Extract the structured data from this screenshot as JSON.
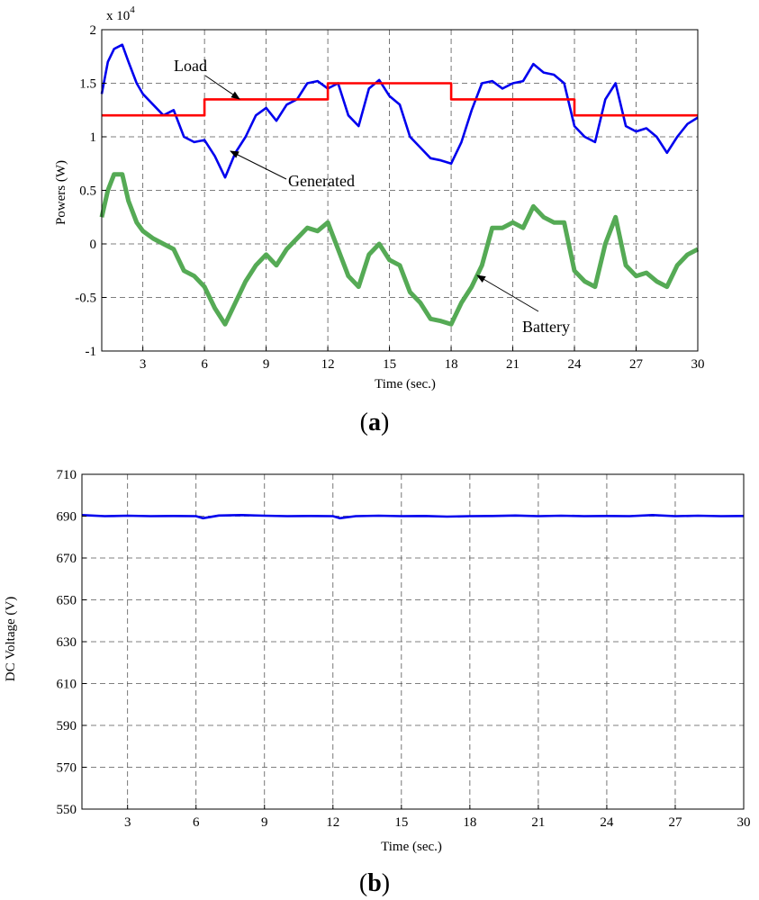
{
  "charts": [
    {
      "id": "a",
      "panel_label": "a",
      "xlabel": "Time (sec.)",
      "ylabel": "Powers (W)",
      "exponent_label": "x 10",
      "exponent_power": "4",
      "annotations": [
        "Load",
        "Generated",
        "Battery"
      ]
    },
    {
      "id": "b",
      "panel_label": "b",
      "xlabel": "Time (sec.)",
      "ylabel": "DC Voltage (V)"
    }
  ],
  "colors": {
    "load": "#ff0000",
    "generated": "#0000ee",
    "battery": "#55aa55",
    "voltage": "#0000ee",
    "grid": "#555555"
  },
  "chart_data": [
    {
      "type": "line",
      "title": "",
      "xlabel": "Time (sec.)",
      "ylabel": "Powers (W)",
      "y_scale_note": "x 10^4",
      "xlim": [
        1,
        30
      ],
      "ylim": [
        -1,
        2
      ],
      "x_ticks": [
        3,
        6,
        9,
        12,
        15,
        18,
        21,
        24,
        27,
        30
      ],
      "y_ticks": [
        -1,
        -0.5,
        0,
        0.5,
        1,
        1.5,
        2
      ],
      "x_tick_labels": [
        "3",
        "6",
        "9",
        "12",
        "15",
        "18",
        "21",
        "24",
        "27",
        "30"
      ],
      "y_tick_labels": [
        "-1",
        "-0.5",
        "0",
        "0.5",
        "1",
        "1.5",
        "2"
      ],
      "grid": true,
      "series": [
        {
          "key": "load",
          "name": "Load",
          "step": true,
          "x": [
            1,
            6,
            6,
            12,
            12,
            18,
            18,
            24,
            24,
            30
          ],
          "y": [
            1.2,
            1.2,
            1.35,
            1.35,
            1.5,
            1.5,
            1.35,
            1.35,
            1.2,
            1.2
          ]
        },
        {
          "key": "generated",
          "name": "Generated",
          "x": [
            1,
            1.3,
            1.6,
            2.0,
            2.3,
            2.7,
            3.0,
            3.5,
            4.0,
            4.5,
            5.0,
            5.5,
            6.0,
            6.5,
            7.0,
            7.5,
            8.0,
            8.5,
            9.0,
            9.5,
            10.0,
            10.5,
            11.0,
            11.5,
            12.0,
            12.5,
            13.0,
            13.5,
            14.0,
            14.5,
            15.0,
            15.5,
            16.0,
            16.5,
            17.0,
            17.5,
            18.0,
            18.5,
            19.0,
            19.5,
            20.0,
            20.5,
            21.0,
            21.5,
            22.0,
            22.5,
            23.0,
            23.5,
            24.0,
            24.5,
            25.0,
            25.5,
            26.0,
            26.5,
            27.0,
            27.5,
            28.0,
            28.5,
            29.0,
            29.5,
            30.0
          ],
          "y": [
            1.4,
            1.7,
            1.82,
            1.86,
            1.7,
            1.5,
            1.4,
            1.3,
            1.2,
            1.25,
            1.0,
            0.95,
            0.97,
            0.82,
            0.62,
            0.85,
            1.0,
            1.2,
            1.27,
            1.15,
            1.3,
            1.35,
            1.5,
            1.52,
            1.45,
            1.5,
            1.2,
            1.1,
            1.45,
            1.53,
            1.38,
            1.3,
            1.0,
            0.9,
            0.8,
            0.78,
            0.75,
            0.95,
            1.25,
            1.5,
            1.52,
            1.45,
            1.5,
            1.52,
            1.68,
            1.6,
            1.58,
            1.5,
            1.1,
            1.0,
            0.95,
            1.35,
            1.5,
            1.1,
            1.05,
            1.08,
            1.0,
            0.85,
            1.0,
            1.12,
            1.18
          ]
        },
        {
          "key": "battery",
          "name": "Battery",
          "x": [
            1,
            1.3,
            1.6,
            2.0,
            2.3,
            2.7,
            3.0,
            3.5,
            4.0,
            4.5,
            5.0,
            5.5,
            6.0,
            6.5,
            7.0,
            7.5,
            8.0,
            8.5,
            9.0,
            9.5,
            10.0,
            10.5,
            11.0,
            11.5,
            12.0,
            12.5,
            13.0,
            13.5,
            14.0,
            14.5,
            15.0,
            15.5,
            16.0,
            16.5,
            17.0,
            17.5,
            18.0,
            18.5,
            19.0,
            19.5,
            20.0,
            20.5,
            21.0,
            21.5,
            22.0,
            22.5,
            23.0,
            23.5,
            24.0,
            24.5,
            25.0,
            25.5,
            26.0,
            26.5,
            27.0,
            27.5,
            28.0,
            28.5,
            29.0,
            29.5,
            30.0
          ],
          "y": [
            0.25,
            0.5,
            0.65,
            0.65,
            0.4,
            0.2,
            0.12,
            0.05,
            0.0,
            -0.05,
            -0.25,
            -0.3,
            -0.4,
            -0.6,
            -0.75,
            -0.55,
            -0.35,
            -0.2,
            -0.1,
            -0.2,
            -0.05,
            0.05,
            0.15,
            0.12,
            0.2,
            -0.05,
            -0.3,
            -0.4,
            -0.1,
            0.0,
            -0.15,
            -0.2,
            -0.45,
            -0.55,
            -0.7,
            -0.72,
            -0.75,
            -0.55,
            -0.4,
            -0.2,
            0.15,
            0.15,
            0.2,
            0.15,
            0.35,
            0.25,
            0.2,
            0.2,
            -0.25,
            -0.35,
            -0.4,
            0.0,
            0.25,
            -0.2,
            -0.3,
            -0.27,
            -0.35,
            -0.4,
            -0.2,
            -0.1,
            -0.05
          ]
        }
      ]
    },
    {
      "type": "line",
      "title": "",
      "xlabel": "Time (sec.)",
      "ylabel": "DC Voltage (V)",
      "xlim": [
        1,
        30
      ],
      "ylim": [
        550,
        710
      ],
      "x_ticks": [
        3,
        6,
        9,
        12,
        15,
        18,
        21,
        24,
        27,
        30
      ],
      "y_ticks": [
        550,
        570,
        590,
        610,
        630,
        650,
        670,
        690,
        710
      ],
      "x_tick_labels": [
        "3",
        "6",
        "9",
        "12",
        "15",
        "18",
        "21",
        "24",
        "27",
        "30"
      ],
      "y_tick_labels": [
        "550",
        "570",
        "590",
        "610",
        "630",
        "650",
        "670",
        "690",
        "710"
      ],
      "grid": true,
      "series": [
        {
          "key": "voltage",
          "name": "",
          "x": [
            1,
            2,
            3,
            4,
            5,
            6,
            6.3,
            7,
            8,
            9,
            10,
            11,
            12,
            12.3,
            13,
            14,
            15,
            16,
            17,
            18,
            19,
            20,
            21,
            22,
            23,
            24,
            25,
            26,
            27,
            28,
            29,
            30
          ],
          "y": [
            690.5,
            690,
            690.2,
            690,
            690.1,
            690,
            689,
            690.3,
            690.5,
            690.2,
            690,
            690.1,
            690,
            689,
            690,
            690.2,
            690,
            690.1,
            689.8,
            690,
            690.1,
            690.3,
            690,
            690.2,
            690,
            690.1,
            690,
            690.5,
            690,
            690.2,
            690,
            690.1
          ]
        }
      ]
    }
  ]
}
